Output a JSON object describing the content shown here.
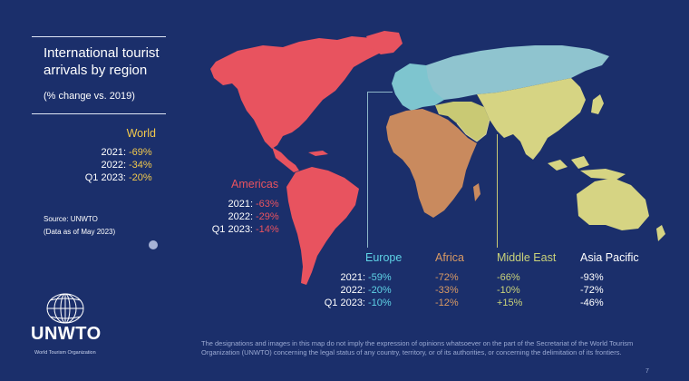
{
  "title": "International tourist arrivals by region",
  "subtitle": "(% change vs. 2019)",
  "row_labels": [
    "2021:",
    "2022:",
    "Q1 2023:"
  ],
  "world": {
    "name": "World",
    "values": [
      "-69%",
      "-34%",
      "-20%"
    ],
    "color": "#f2c94c"
  },
  "regions": [
    {
      "name": "Americas",
      "values": [
        "-63%",
        "-29%",
        "-14%"
      ],
      "color": "#e8535f"
    },
    {
      "name": "Europe",
      "values": [
        "-59%",
        "-20%",
        "-10%"
      ],
      "color": "#5fd3e6"
    },
    {
      "name": "Africa",
      "values": [
        "-72%",
        "-33%",
        "-12%"
      ],
      "color": "#d99a64"
    },
    {
      "name": "Middle East",
      "values": [
        "-66%",
        "-10%",
        "+15%"
      ],
      "color": "#c9d27a"
    },
    {
      "name": "Asia Pacific",
      "values": [
        "-93%",
        "-72%",
        "-46%"
      ],
      "color": "#ffffff"
    }
  ],
  "source": {
    "line1": "Source: UNWTO",
    "line2": "(Data as of May 2023)"
  },
  "logo": {
    "name": "UNWTO",
    "tagline": "World Tourism Organization"
  },
  "disclaimer": "The designations and images in this map do not imply the expression of opinions whatsoever on the part of the Secretariat of the World Tourism Organization (UNWTO) concerning the legal status of any country, territory, or of its authorities, or concerning the delimitation of its frontiers.",
  "page_number": "7",
  "map_colors": {
    "americas": "#e8535f",
    "europe": "#7ec5cf",
    "africa": "#c98a5e",
    "middle_east": "#c9c974",
    "asia_pacific": "#d6d483",
    "russia": "#8fc4cf"
  }
}
